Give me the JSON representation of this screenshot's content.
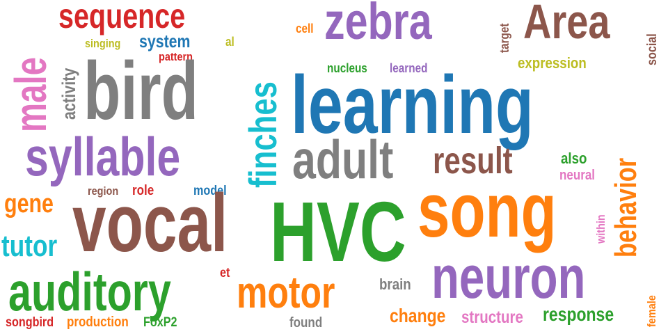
{
  "colors": {
    "blue": "#1f77b4",
    "orange": "#ff7f0e",
    "green": "#2ca02c",
    "red": "#d62728",
    "purple": "#9467bd",
    "brown": "#8c564b",
    "pink": "#e377c2",
    "gray": "#7f7f7f",
    "olive": "#bcbd22",
    "cyan": "#17becf"
  },
  "words": {
    "sequence": "sequence",
    "zebra": "zebra",
    "area": "Area",
    "male": "male",
    "finches": "finches",
    "bird": "bird",
    "learning": "learning",
    "behavior": "behavior",
    "syllable": "syllable",
    "adult": "adult",
    "result": "result",
    "vocal": "vocal",
    "hvc": "HVC",
    "song": "song",
    "neuron": "neuron",
    "auditory": "auditory",
    "motor": "motor",
    "tutor": "tutor",
    "gene": "gene",
    "system": "system",
    "singing": "singing",
    "al": "al",
    "pattern": "pattern",
    "activity": "activity",
    "cell": "cell",
    "nucleus": "nucleus",
    "learned": "learned",
    "target": "target",
    "expression": "expression",
    "social": "social",
    "also": "also",
    "neural": "neural",
    "region": "region",
    "role": "role",
    "model": "model",
    "within": "within",
    "et": "et",
    "brain": "brain",
    "change": "change",
    "structure": "structure",
    "response": "response",
    "female": "female",
    "songbird": "songbird",
    "production": "production",
    "foxp2": "FoxP2",
    "found": "found"
  }
}
